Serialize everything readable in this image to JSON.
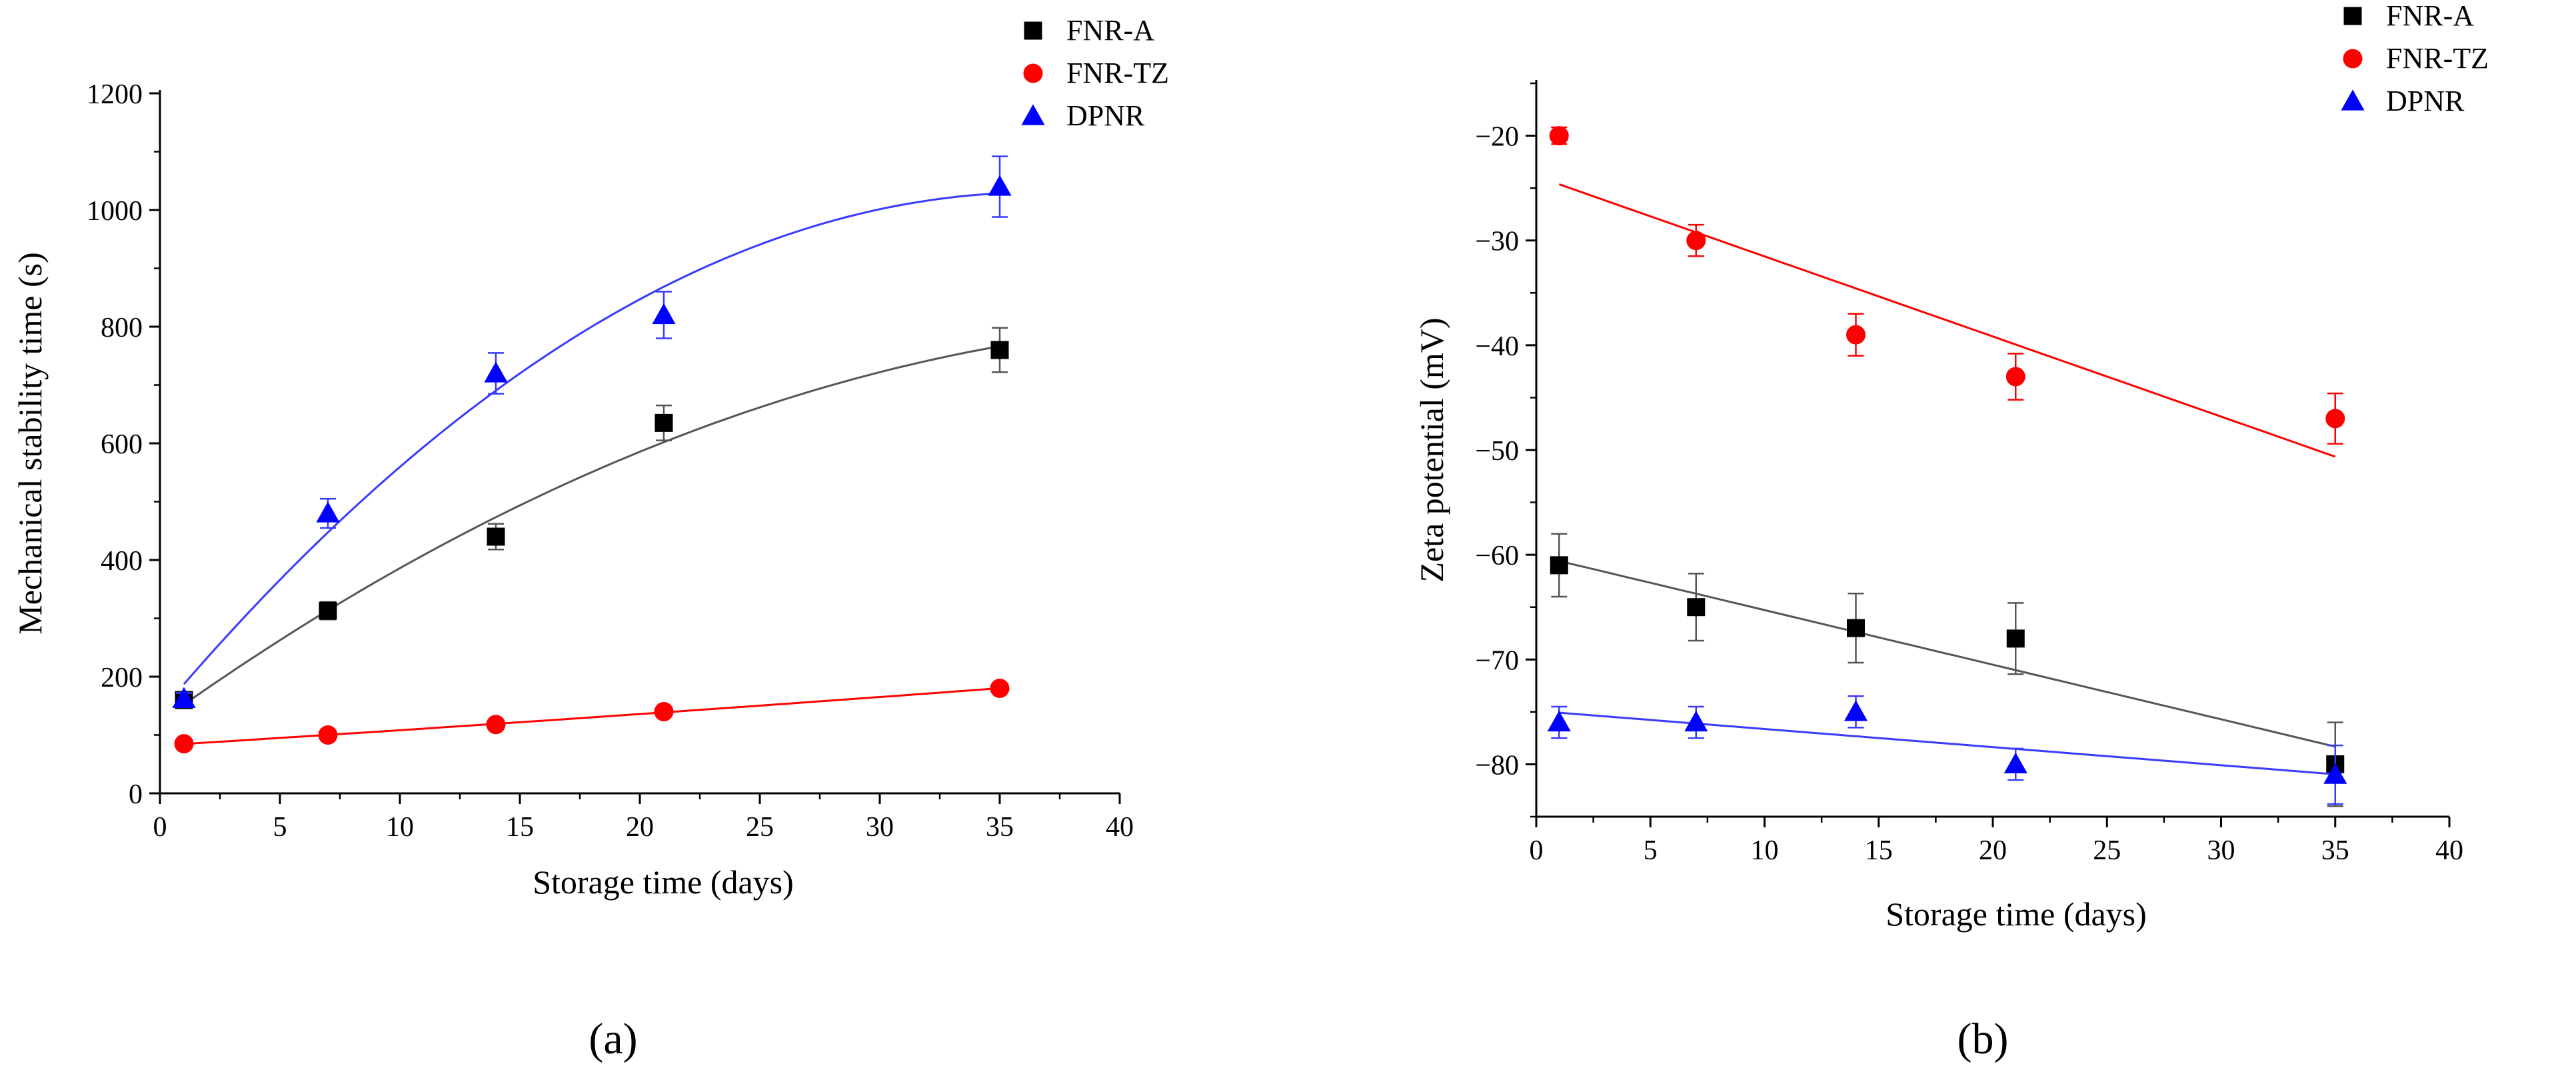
{
  "chart_data": [
    {
      "type": "scatter",
      "panel_label": "(a)",
      "xlabel": "Storage time (days)",
      "ylabel": "Mechanical stability time (s)",
      "xlim": [
        0,
        40
      ],
      "ylim": [
        0,
        1200
      ],
      "xticks": [
        0,
        5,
        10,
        15,
        20,
        25,
        30,
        35,
        40
      ],
      "yticks": [
        0,
        200,
        400,
        600,
        800,
        1000,
        1200
      ],
      "legend_position": "top-right",
      "series": [
        {
          "name": "FNR-A",
          "marker": "square",
          "color": "#000000",
          "fit_color": "#555555",
          "fit": "quadratic",
          "x": [
            1,
            7,
            14,
            21,
            35
          ],
          "y": [
            160,
            313,
            440,
            635,
            760
          ],
          "err": [
            10,
            15,
            22,
            30,
            38
          ]
        },
        {
          "name": "FNR-TZ",
          "marker": "circle",
          "color": "#ff0000",
          "fit_color": "#ff0000",
          "fit": "quadratic",
          "x": [
            1,
            7,
            14,
            21,
            35
          ],
          "y": [
            85,
            100,
            118,
            140,
            180
          ],
          "err": [
            5,
            5,
            5,
            5,
            5
          ]
        },
        {
          "name": "DPNR",
          "marker": "triangle",
          "color": "#0000ff",
          "fit_color": "#3a3aff",
          "fit": "quadratic",
          "x": [
            1,
            7,
            14,
            21,
            35
          ],
          "y": [
            162,
            480,
            720,
            820,
            1040
          ],
          "err": [
            10,
            25,
            35,
            40,
            52
          ]
        }
      ]
    },
    {
      "type": "scatter",
      "panel_label": "(b)",
      "xlabel": "Storage time (days)",
      "ylabel": "Zeta potential (mV)",
      "xlim": [
        0,
        40
      ],
      "ylim": [
        -85,
        -15
      ],
      "xticks": [
        0,
        5,
        10,
        15,
        20,
        25,
        30,
        35,
        40
      ],
      "yticks": [
        -80,
        -70,
        -60,
        -50,
        -40,
        -30,
        -20
      ],
      "legend_position": "top-right",
      "series": [
        {
          "name": "FNR-A",
          "marker": "square",
          "color": "#000000",
          "fit_color": "#555555",
          "fit": "linear",
          "x": [
            1,
            7,
            14,
            21,
            35
          ],
          "y": [
            -61,
            -65,
            -67,
            -68,
            -80
          ],
          "err": [
            3,
            3.2,
            3.3,
            3.4,
            4
          ]
        },
        {
          "name": "FNR-TZ",
          "marker": "circle",
          "color": "#ff0000",
          "fit_color": "#ff0000",
          "fit": "linear",
          "x": [
            1,
            7,
            14,
            21,
            35
          ],
          "y": [
            -20,
            -30,
            -39,
            -43,
            -47
          ],
          "err": [
            0.8,
            1.5,
            2,
            2.2,
            2.4
          ]
        },
        {
          "name": "DPNR",
          "marker": "triangle",
          "color": "#0000ff",
          "fit_color": "#3a3aff",
          "fit": "linear",
          "x": [
            1,
            7,
            14,
            21,
            35
          ],
          "y": [
            -76,
            -76,
            -75,
            -80,
            -81
          ],
          "err": [
            1.5,
            1.5,
            1.5,
            1.5,
            2.8
          ]
        }
      ]
    }
  ]
}
